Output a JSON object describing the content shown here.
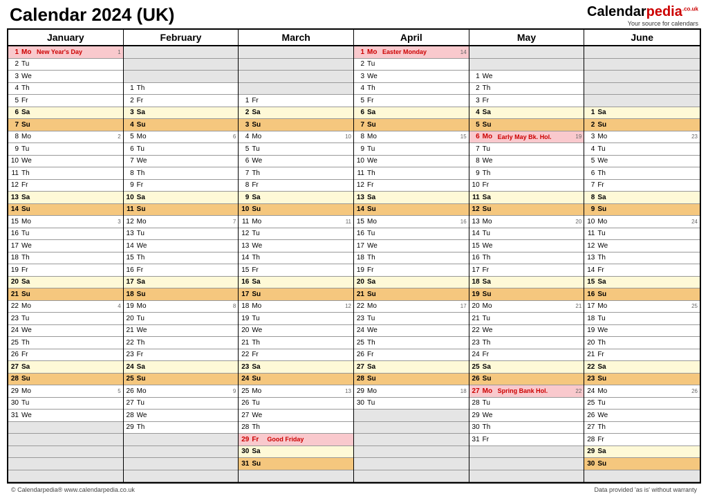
{
  "title": "Calendar 2024 (UK)",
  "logo": {
    "main": "Calendar",
    "accent": "pedia",
    "sup": ".co.uk",
    "tagline": "Your source for calendars"
  },
  "footer": {
    "left": "© Calendarpedia®   www.calendarpedia.co.uk",
    "right": "Data provided 'as is' without warranty"
  },
  "rows_per_month": 36,
  "colors": {
    "saturday_bg": "#fef9d7",
    "sunday_bg": "#f5c77e",
    "holiday_bg": "#f9c9cd",
    "holiday_text": "#cc0000",
    "blank_bg": "#e5e5e5",
    "border": "#000000"
  },
  "months": [
    {
      "name": "January",
      "lead_blanks": 0,
      "days": [
        {
          "n": 1,
          "w": "Mo",
          "t": "hol",
          "h": "New Year's Day",
          "wk": 1
        },
        {
          "n": 2,
          "w": "Tu",
          "t": ""
        },
        {
          "n": 3,
          "w": "We",
          "t": ""
        },
        {
          "n": 4,
          "w": "Th",
          "t": ""
        },
        {
          "n": 5,
          "w": "Fr",
          "t": ""
        },
        {
          "n": 6,
          "w": "Sa",
          "t": "sat"
        },
        {
          "n": 7,
          "w": "Su",
          "t": "sun"
        },
        {
          "n": 8,
          "w": "Mo",
          "t": "",
          "wk": 2
        },
        {
          "n": 9,
          "w": "Tu",
          "t": ""
        },
        {
          "n": 10,
          "w": "We",
          "t": ""
        },
        {
          "n": 11,
          "w": "Th",
          "t": ""
        },
        {
          "n": 12,
          "w": "Fr",
          "t": ""
        },
        {
          "n": 13,
          "w": "Sa",
          "t": "sat"
        },
        {
          "n": 14,
          "w": "Su",
          "t": "sun"
        },
        {
          "n": 15,
          "w": "Mo",
          "t": "",
          "wk": 3
        },
        {
          "n": 16,
          "w": "Tu",
          "t": ""
        },
        {
          "n": 17,
          "w": "We",
          "t": ""
        },
        {
          "n": 18,
          "w": "Th",
          "t": ""
        },
        {
          "n": 19,
          "w": "Fr",
          "t": ""
        },
        {
          "n": 20,
          "w": "Sa",
          "t": "sat"
        },
        {
          "n": 21,
          "w": "Su",
          "t": "sun"
        },
        {
          "n": 22,
          "w": "Mo",
          "t": "",
          "wk": 4
        },
        {
          "n": 23,
          "w": "Tu",
          "t": ""
        },
        {
          "n": 24,
          "w": "We",
          "t": ""
        },
        {
          "n": 25,
          "w": "Th",
          "t": ""
        },
        {
          "n": 26,
          "w": "Fr",
          "t": ""
        },
        {
          "n": 27,
          "w": "Sa",
          "t": "sat"
        },
        {
          "n": 28,
          "w": "Su",
          "t": "sun"
        },
        {
          "n": 29,
          "w": "Mo",
          "t": "",
          "wk": 5
        },
        {
          "n": 30,
          "w": "Tu",
          "t": ""
        },
        {
          "n": 31,
          "w": "We",
          "t": ""
        }
      ]
    },
    {
      "name": "February",
      "lead_blanks": 3,
      "days": [
        {
          "n": 1,
          "w": "Th",
          "t": ""
        },
        {
          "n": 2,
          "w": "Fr",
          "t": ""
        },
        {
          "n": 3,
          "w": "Sa",
          "t": "sat"
        },
        {
          "n": 4,
          "w": "Su",
          "t": "sun"
        },
        {
          "n": 5,
          "w": "Mo",
          "t": "",
          "wk": 6
        },
        {
          "n": 6,
          "w": "Tu",
          "t": ""
        },
        {
          "n": 7,
          "w": "We",
          "t": ""
        },
        {
          "n": 8,
          "w": "Th",
          "t": ""
        },
        {
          "n": 9,
          "w": "Fr",
          "t": ""
        },
        {
          "n": 10,
          "w": "Sa",
          "t": "sat"
        },
        {
          "n": 11,
          "w": "Su",
          "t": "sun"
        },
        {
          "n": 12,
          "w": "Mo",
          "t": "",
          "wk": 7
        },
        {
          "n": 13,
          "w": "Tu",
          "t": ""
        },
        {
          "n": 14,
          "w": "We",
          "t": ""
        },
        {
          "n": 15,
          "w": "Th",
          "t": ""
        },
        {
          "n": 16,
          "w": "Fr",
          "t": ""
        },
        {
          "n": 17,
          "w": "Sa",
          "t": "sat"
        },
        {
          "n": 18,
          "w": "Su",
          "t": "sun"
        },
        {
          "n": 19,
          "w": "Mo",
          "t": "",
          "wk": 8
        },
        {
          "n": 20,
          "w": "Tu",
          "t": ""
        },
        {
          "n": 21,
          "w": "We",
          "t": ""
        },
        {
          "n": 22,
          "w": "Th",
          "t": ""
        },
        {
          "n": 23,
          "w": "Fr",
          "t": ""
        },
        {
          "n": 24,
          "w": "Sa",
          "t": "sat"
        },
        {
          "n": 25,
          "w": "Su",
          "t": "sun"
        },
        {
          "n": 26,
          "w": "Mo",
          "t": "",
          "wk": 9
        },
        {
          "n": 27,
          "w": "Tu",
          "t": ""
        },
        {
          "n": 28,
          "w": "We",
          "t": ""
        },
        {
          "n": 29,
          "w": "Th",
          "t": ""
        }
      ]
    },
    {
      "name": "March",
      "lead_blanks": 4,
      "days": [
        {
          "n": 1,
          "w": "Fr",
          "t": ""
        },
        {
          "n": 2,
          "w": "Sa",
          "t": "sat"
        },
        {
          "n": 3,
          "w": "Su",
          "t": "sun"
        },
        {
          "n": 4,
          "w": "Mo",
          "t": "",
          "wk": 10
        },
        {
          "n": 5,
          "w": "Tu",
          "t": ""
        },
        {
          "n": 6,
          "w": "We",
          "t": ""
        },
        {
          "n": 7,
          "w": "Th",
          "t": ""
        },
        {
          "n": 8,
          "w": "Fr",
          "t": ""
        },
        {
          "n": 9,
          "w": "Sa",
          "t": "sat"
        },
        {
          "n": 10,
          "w": "Su",
          "t": "sun"
        },
        {
          "n": 11,
          "w": "Mo",
          "t": "",
          "wk": 11
        },
        {
          "n": 12,
          "w": "Tu",
          "t": ""
        },
        {
          "n": 13,
          "w": "We",
          "t": ""
        },
        {
          "n": 14,
          "w": "Th",
          "t": ""
        },
        {
          "n": 15,
          "w": "Fr",
          "t": ""
        },
        {
          "n": 16,
          "w": "Sa",
          "t": "sat"
        },
        {
          "n": 17,
          "w": "Su",
          "t": "sun"
        },
        {
          "n": 18,
          "w": "Mo",
          "t": "",
          "wk": 12
        },
        {
          "n": 19,
          "w": "Tu",
          "t": ""
        },
        {
          "n": 20,
          "w": "We",
          "t": ""
        },
        {
          "n": 21,
          "w": "Th",
          "t": ""
        },
        {
          "n": 22,
          "w": "Fr",
          "t": ""
        },
        {
          "n": 23,
          "w": "Sa",
          "t": "sat"
        },
        {
          "n": 24,
          "w": "Su",
          "t": "sun"
        },
        {
          "n": 25,
          "w": "Mo",
          "t": "",
          "wk": 13
        },
        {
          "n": 26,
          "w": "Tu",
          "t": ""
        },
        {
          "n": 27,
          "w": "We",
          "t": ""
        },
        {
          "n": 28,
          "w": "Th",
          "t": ""
        },
        {
          "n": 29,
          "w": "Fr",
          "t": "hol",
          "h": "Good Friday"
        },
        {
          "n": 30,
          "w": "Sa",
          "t": "sat"
        },
        {
          "n": 31,
          "w": "Su",
          "t": "sun"
        }
      ]
    },
    {
      "name": "April",
      "lead_blanks": 0,
      "days": [
        {
          "n": 1,
          "w": "Mo",
          "t": "hol",
          "h": "Easter Monday",
          "wk": 14
        },
        {
          "n": 2,
          "w": "Tu",
          "t": ""
        },
        {
          "n": 3,
          "w": "We",
          "t": ""
        },
        {
          "n": 4,
          "w": "Th",
          "t": ""
        },
        {
          "n": 5,
          "w": "Fr",
          "t": ""
        },
        {
          "n": 6,
          "w": "Sa",
          "t": "sat"
        },
        {
          "n": 7,
          "w": "Su",
          "t": "sun"
        },
        {
          "n": 8,
          "w": "Mo",
          "t": "",
          "wk": 15
        },
        {
          "n": 9,
          "w": "Tu",
          "t": ""
        },
        {
          "n": 10,
          "w": "We",
          "t": ""
        },
        {
          "n": 11,
          "w": "Th",
          "t": ""
        },
        {
          "n": 12,
          "w": "Fr",
          "t": ""
        },
        {
          "n": 13,
          "w": "Sa",
          "t": "sat"
        },
        {
          "n": 14,
          "w": "Su",
          "t": "sun"
        },
        {
          "n": 15,
          "w": "Mo",
          "t": "",
          "wk": 16
        },
        {
          "n": 16,
          "w": "Tu",
          "t": ""
        },
        {
          "n": 17,
          "w": "We",
          "t": ""
        },
        {
          "n": 18,
          "w": "Th",
          "t": ""
        },
        {
          "n": 19,
          "w": "Fr",
          "t": ""
        },
        {
          "n": 20,
          "w": "Sa",
          "t": "sat"
        },
        {
          "n": 21,
          "w": "Su",
          "t": "sun"
        },
        {
          "n": 22,
          "w": "Mo",
          "t": "",
          "wk": 17
        },
        {
          "n": 23,
          "w": "Tu",
          "t": ""
        },
        {
          "n": 24,
          "w": "We",
          "t": ""
        },
        {
          "n": 25,
          "w": "Th",
          "t": ""
        },
        {
          "n": 26,
          "w": "Fr",
          "t": ""
        },
        {
          "n": 27,
          "w": "Sa",
          "t": "sat"
        },
        {
          "n": 28,
          "w": "Su",
          "t": "sun"
        },
        {
          "n": 29,
          "w": "Mo",
          "t": "",
          "wk": 18
        },
        {
          "n": 30,
          "w": "Tu",
          "t": ""
        }
      ]
    },
    {
      "name": "May",
      "lead_blanks": 2,
      "days": [
        {
          "n": 1,
          "w": "We",
          "t": ""
        },
        {
          "n": 2,
          "w": "Th",
          "t": ""
        },
        {
          "n": 3,
          "w": "Fr",
          "t": ""
        },
        {
          "n": 4,
          "w": "Sa",
          "t": "sat"
        },
        {
          "n": 5,
          "w": "Su",
          "t": "sun"
        },
        {
          "n": 6,
          "w": "Mo",
          "t": "hol",
          "h": "Early May Bk. Hol.",
          "wk": 19
        },
        {
          "n": 7,
          "w": "Tu",
          "t": ""
        },
        {
          "n": 8,
          "w": "We",
          "t": ""
        },
        {
          "n": 9,
          "w": "Th",
          "t": ""
        },
        {
          "n": 10,
          "w": "Fr",
          "t": ""
        },
        {
          "n": 11,
          "w": "Sa",
          "t": "sat"
        },
        {
          "n": 12,
          "w": "Su",
          "t": "sun"
        },
        {
          "n": 13,
          "w": "Mo",
          "t": "",
          "wk": 20
        },
        {
          "n": 14,
          "w": "Tu",
          "t": ""
        },
        {
          "n": 15,
          "w": "We",
          "t": ""
        },
        {
          "n": 16,
          "w": "Th",
          "t": ""
        },
        {
          "n": 17,
          "w": "Fr",
          "t": ""
        },
        {
          "n": 18,
          "w": "Sa",
          "t": "sat"
        },
        {
          "n": 19,
          "w": "Su",
          "t": "sun"
        },
        {
          "n": 20,
          "w": "Mo",
          "t": "",
          "wk": 21
        },
        {
          "n": 21,
          "w": "Tu",
          "t": ""
        },
        {
          "n": 22,
          "w": "We",
          "t": ""
        },
        {
          "n": 23,
          "w": "Th",
          "t": ""
        },
        {
          "n": 24,
          "w": "Fr",
          "t": ""
        },
        {
          "n": 25,
          "w": "Sa",
          "t": "sat"
        },
        {
          "n": 26,
          "w": "Su",
          "t": "sun"
        },
        {
          "n": 27,
          "w": "Mo",
          "t": "hol",
          "h": "Spring Bank Hol.",
          "wk": 22
        },
        {
          "n": 28,
          "w": "Tu",
          "t": ""
        },
        {
          "n": 29,
          "w": "We",
          "t": ""
        },
        {
          "n": 30,
          "w": "Th",
          "t": ""
        },
        {
          "n": 31,
          "w": "Fr",
          "t": ""
        }
      ]
    },
    {
      "name": "June",
      "lead_blanks": 5,
      "days": [
        {
          "n": 1,
          "w": "Sa",
          "t": "sat"
        },
        {
          "n": 2,
          "w": "Su",
          "t": "sun"
        },
        {
          "n": 3,
          "w": "Mo",
          "t": "",
          "wk": 23
        },
        {
          "n": 4,
          "w": "Tu",
          "t": ""
        },
        {
          "n": 5,
          "w": "We",
          "t": ""
        },
        {
          "n": 6,
          "w": "Th",
          "t": ""
        },
        {
          "n": 7,
          "w": "Fr",
          "t": ""
        },
        {
          "n": 8,
          "w": "Sa",
          "t": "sat"
        },
        {
          "n": 9,
          "w": "Su",
          "t": "sun"
        },
        {
          "n": 10,
          "w": "Mo",
          "t": "",
          "wk": 24
        },
        {
          "n": 11,
          "w": "Tu",
          "t": ""
        },
        {
          "n": 12,
          "w": "We",
          "t": ""
        },
        {
          "n": 13,
          "w": "Th",
          "t": ""
        },
        {
          "n": 14,
          "w": "Fr",
          "t": ""
        },
        {
          "n": 15,
          "w": "Sa",
          "t": "sat"
        },
        {
          "n": 16,
          "w": "Su",
          "t": "sun"
        },
        {
          "n": 17,
          "w": "Mo",
          "t": "",
          "wk": 25
        },
        {
          "n": 18,
          "w": "Tu",
          "t": ""
        },
        {
          "n": 19,
          "w": "We",
          "t": ""
        },
        {
          "n": 20,
          "w": "Th",
          "t": ""
        },
        {
          "n": 21,
          "w": "Fr",
          "t": ""
        },
        {
          "n": 22,
          "w": "Sa",
          "t": "sat"
        },
        {
          "n": 23,
          "w": "Su",
          "t": "sun"
        },
        {
          "n": 24,
          "w": "Mo",
          "t": "",
          "wk": 26
        },
        {
          "n": 25,
          "w": "Tu",
          "t": ""
        },
        {
          "n": 26,
          "w": "We",
          "t": ""
        },
        {
          "n": 27,
          "w": "Th",
          "t": ""
        },
        {
          "n": 28,
          "w": "Fr",
          "t": ""
        },
        {
          "n": 29,
          "w": "Sa",
          "t": "sat"
        },
        {
          "n": 30,
          "w": "Su",
          "t": "sun"
        }
      ]
    }
  ]
}
